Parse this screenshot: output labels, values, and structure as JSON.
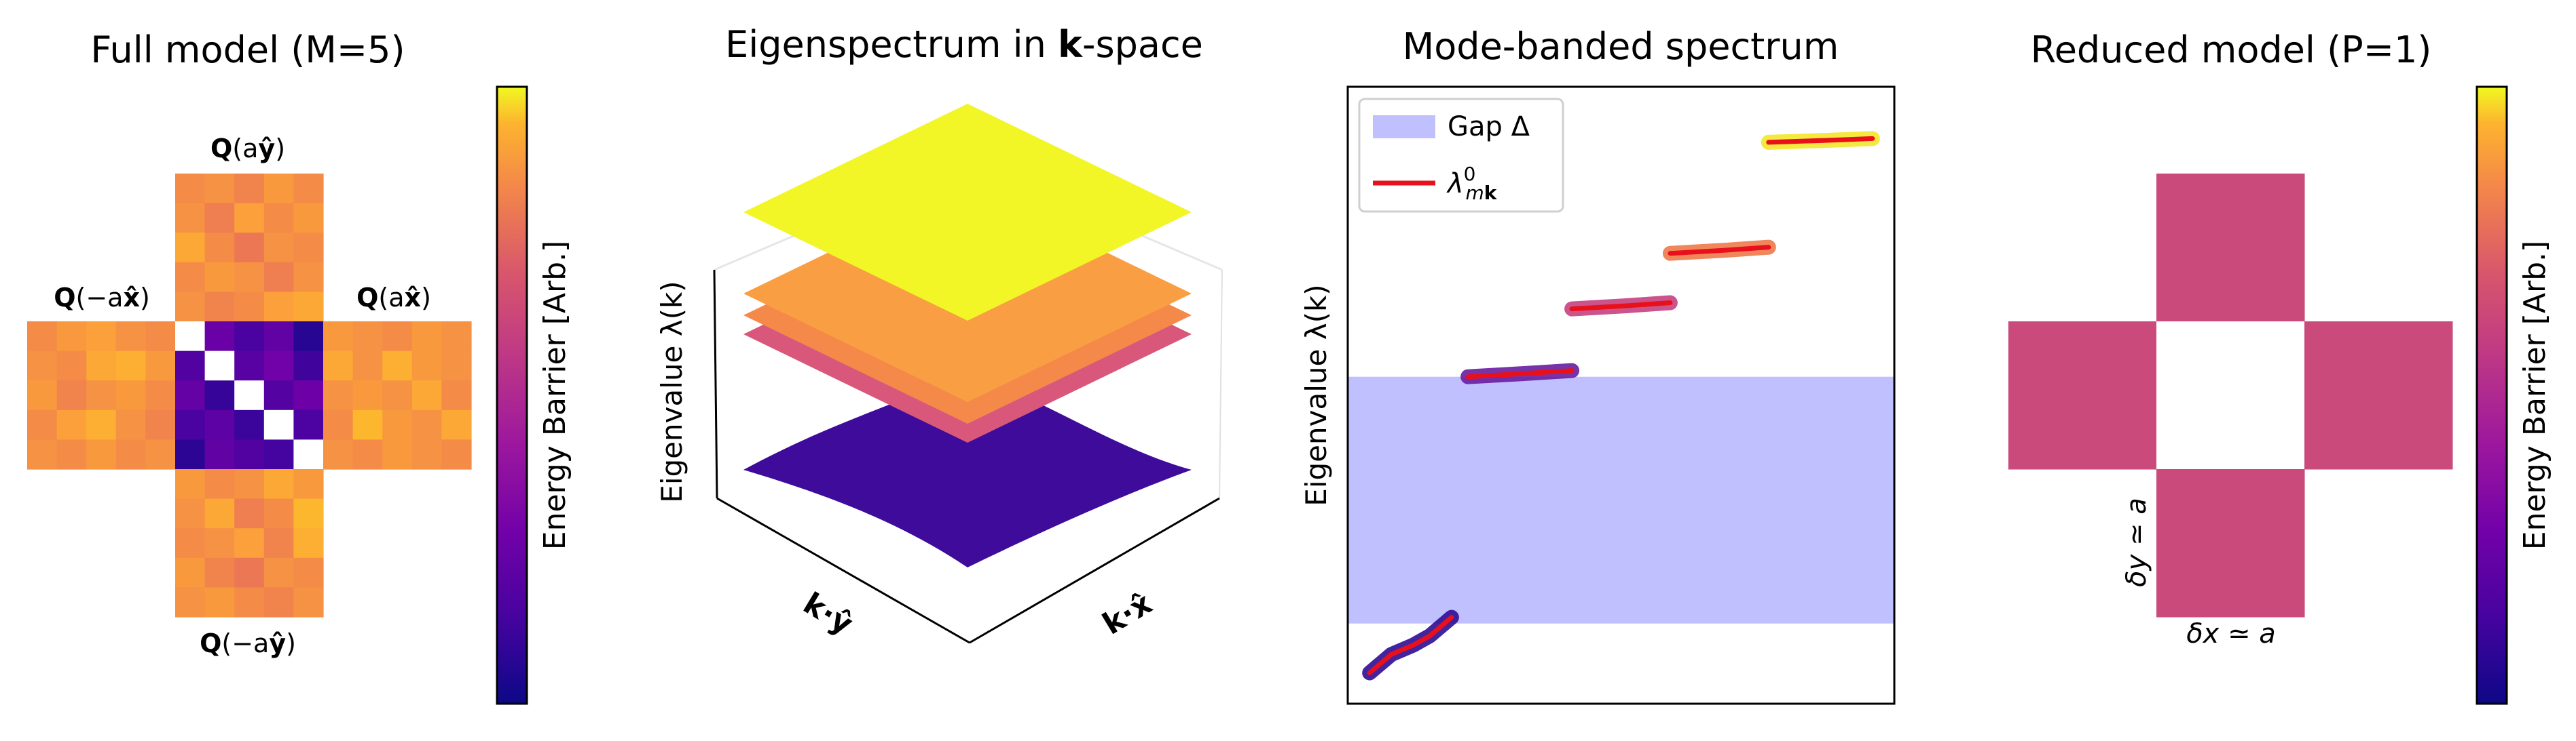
{
  "colormap": "plasma",
  "colors": {
    "gap_band": "#c0c0ff",
    "lambda_line": "#e8101a",
    "reduced_cell": "#c94a7b",
    "surface_yellow": "#f2f526",
    "surface_orange1": "#f99e42",
    "surface_orange2": "#f5894a",
    "surface_pink": "#d8577b",
    "surface_purple": "#3e0b9a"
  },
  "panels": {
    "full": {
      "title": "Full model (M=5)",
      "labels": {
        "top": "Q(aŷ)",
        "left": "Q(−ax̂)",
        "right": "Q(ax̂)",
        "bottom": "Q(−aŷ)"
      },
      "colorbar_label": "Energy Barrier [Arb.]"
    },
    "eig3d": {
      "title_prefix": "Eigenspectrum in ",
      "title_bold": "k",
      "title_suffix": "-space",
      "zlabel": "Eigenvalue λ(k)",
      "xlabel": "k·x̂",
      "ylabel": "k·ŷ"
    },
    "banded": {
      "title": "Mode-banded spectrum",
      "ylabel": "Eigenvalue λ(k)",
      "legend": {
        "gap": "Gap Δ",
        "line": "λ⁰ₘₖ"
      }
    },
    "reduced": {
      "title": "Reduced model (P=1)",
      "xlabel": "δx ≃ a",
      "ylabel": "δy ≃ a",
      "colorbar_label": "Energy Barrier [Arb.]"
    }
  },
  "chart_data": [
    {
      "type": "heatmap",
      "title": "Full model (M=5)",
      "colormap": "plasma",
      "clim": [
        0,
        1
      ],
      "center_block": [
        [
          null,
          0.2,
          0.12,
          0.18,
          0.05
        ],
        [
          0.14,
          null,
          0.16,
          0.22,
          0.1
        ],
        [
          0.19,
          0.08,
          null,
          0.15,
          0.21
        ],
        [
          0.12,
          0.17,
          0.09,
          null,
          0.13
        ],
        [
          0.06,
          0.18,
          0.14,
          0.11,
          null
        ]
      ],
      "top_block": [
        [
          0.72,
          0.74,
          0.7,
          0.76,
          0.72
        ],
        [
          0.74,
          0.68,
          0.78,
          0.72,
          0.76
        ],
        [
          0.8,
          0.72,
          0.66,
          0.74,
          0.72
        ],
        [
          0.72,
          0.76,
          0.74,
          0.68,
          0.74
        ],
        [
          0.74,
          0.7,
          0.72,
          0.78,
          0.8
        ]
      ],
      "left_block": [
        [
          0.72,
          0.76,
          0.78,
          0.74,
          0.72
        ],
        [
          0.74,
          0.72,
          0.8,
          0.82,
          0.76
        ],
        [
          0.76,
          0.7,
          0.74,
          0.76,
          0.72
        ],
        [
          0.72,
          0.78,
          0.82,
          0.74,
          0.7
        ],
        [
          0.74,
          0.72,
          0.76,
          0.72,
          0.74
        ]
      ],
      "right_block": [
        [
          0.76,
          0.74,
          0.72,
          0.76,
          0.74
        ],
        [
          0.8,
          0.74,
          0.82,
          0.76,
          0.74
        ],
        [
          0.74,
          0.76,
          0.74,
          0.8,
          0.72
        ],
        [
          0.72,
          0.84,
          0.76,
          0.74,
          0.8
        ],
        [
          0.74,
          0.72,
          0.76,
          0.74,
          0.72
        ]
      ],
      "bottom_block": [
        [
          0.76,
          0.72,
          0.74,
          0.8,
          0.76
        ],
        [
          0.74,
          0.8,
          0.68,
          0.72,
          0.84
        ],
        [
          0.72,
          0.74,
          0.78,
          0.7,
          0.82
        ],
        [
          0.76,
          0.7,
          0.66,
          0.74,
          0.72
        ],
        [
          0.74,
          0.76,
          0.72,
          0.7,
          0.74
        ]
      ],
      "colorbar_label": "Energy Barrier [Arb.]"
    },
    {
      "type": "surface",
      "title": "Eigenspectrum in k-space",
      "xlabel": "k·x̂",
      "ylabel": "k·ŷ",
      "zlabel": "Eigenvalue λ(k)",
      "surfaces": [
        {
          "level": 0.05,
          "color": "#3e0b9a",
          "ripple": true
        },
        {
          "level": 0.55,
          "color": "#d8577b"
        },
        {
          "level": 0.62,
          "color": "#f5894a"
        },
        {
          "level": 0.7,
          "color": "#f99e42"
        },
        {
          "level": 1.0,
          "color": "#f2f526"
        }
      ]
    },
    {
      "type": "line",
      "title": "Mode-banded spectrum",
      "ylabel": "Eigenvalue λ(k)",
      "xlim": [
        0,
        1
      ],
      "ylim": [
        0,
        1
      ],
      "gap": {
        "label": "Gap Δ",
        "y": [
          0.13,
          0.53
        ]
      },
      "series": [
        {
          "name": "λ⁰ₘₖ",
          "color": "#e8101a",
          "halo": "#2e0d94",
          "x": [
            0.04,
            0.08,
            0.12,
            0.15,
            0.19
          ],
          "y": [
            0.05,
            0.08,
            0.095,
            0.11,
            0.14
          ]
        },
        {
          "color": "#e8101a",
          "halo": "#6a1d9e",
          "x": [
            0.22,
            0.32,
            0.41
          ],
          "y": [
            0.53,
            0.535,
            0.54
          ]
        },
        {
          "color": "#e8101a",
          "halo": "#c5417f",
          "x": [
            0.41,
            0.51,
            0.59
          ],
          "y": [
            0.64,
            0.645,
            0.65
          ]
        },
        {
          "color": "#e8101a",
          "halo": "#ee7a4a",
          "x": [
            0.59,
            0.69,
            0.77
          ],
          "y": [
            0.73,
            0.735,
            0.74
          ]
        },
        {
          "color": "#e8101a",
          "halo": "#f4e62a",
          "x": [
            0.77,
            0.87,
            0.96
          ],
          "y": [
            0.91,
            0.913,
            0.916
          ]
        }
      ]
    },
    {
      "type": "heatmap",
      "title": "Reduced model (P=1)",
      "colormap": "plasma",
      "cells": {
        "top": 0.55,
        "left": 0.55,
        "right": 0.55,
        "bottom": 0.55,
        "center": null
      },
      "xlabel": "δx ≃ a",
      "ylabel": "δy ≃ a",
      "colorbar_label": "Energy Barrier [Arb.]"
    }
  ]
}
